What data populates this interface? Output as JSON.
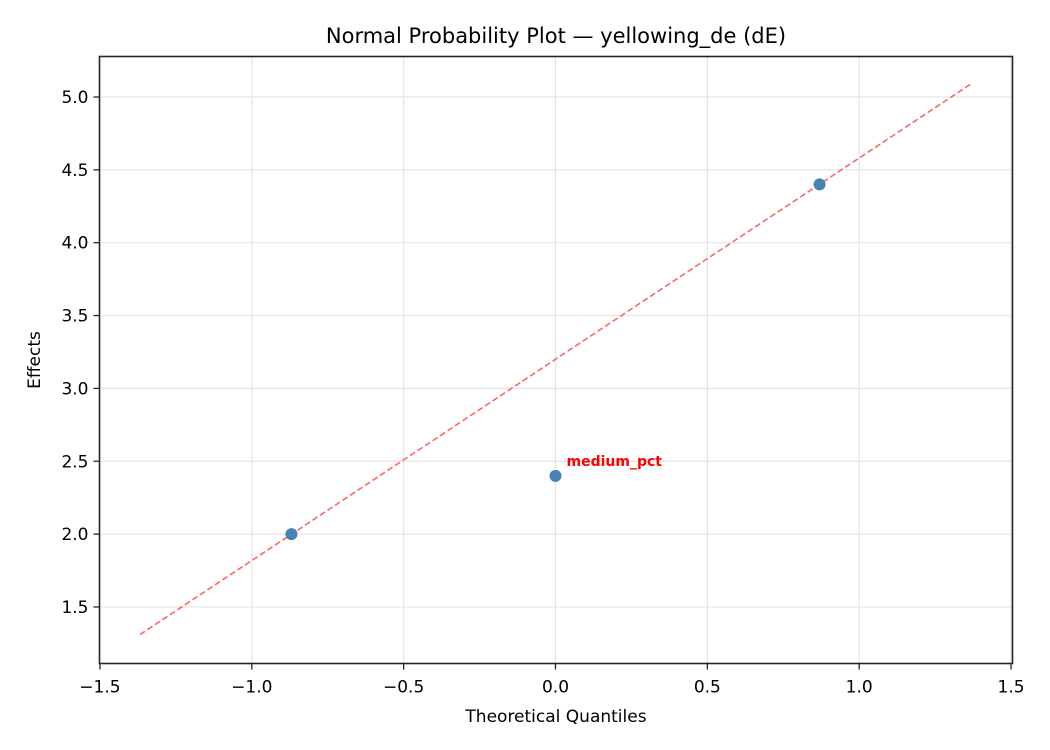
{
  "chart_data": {
    "type": "scatter",
    "title": "Normal Probability Plot — yellowing_de (dE)",
    "xlabel": "Theoretical Quantiles",
    "ylabel": "Effects",
    "xlim": [
      -1.5,
      1.5
    ],
    "ylim": [
      1.15,
      5.28
    ],
    "xticks": [
      -1.5,
      -1.0,
      -0.5,
      0.0,
      0.5,
      1.0,
      1.5
    ],
    "xtick_labels": [
      "−1.5",
      "−1.0",
      "−0.5",
      "0.0",
      "0.5",
      "1.0",
      "1.5"
    ],
    "yticks": [
      1.5,
      2.0,
      2.5,
      3.0,
      3.5,
      4.0,
      4.5,
      5.0
    ],
    "ytick_labels": [
      "1.5",
      "2.0",
      "2.5",
      "3.0",
      "3.5",
      "4.0",
      "4.5",
      "5.0"
    ],
    "grid": true,
    "series": [
      {
        "name": "effects",
        "type": "scatter",
        "color": "#4682b4",
        "x": [
          -0.8694,
          0.0,
          0.8694
        ],
        "y": [
          2.0,
          2.4,
          4.4
        ]
      },
      {
        "name": "reference line",
        "type": "line",
        "style": "dashed",
        "color": "#ff6666",
        "x": [
          -1.3683,
          1.3683
        ],
        "y": [
          1.31,
          5.09
        ]
      }
    ],
    "annotations": [
      {
        "text": "medium_pct",
        "x": 0.0,
        "y": 2.4,
        "color": "#ff0000",
        "bold": true
      }
    ]
  }
}
